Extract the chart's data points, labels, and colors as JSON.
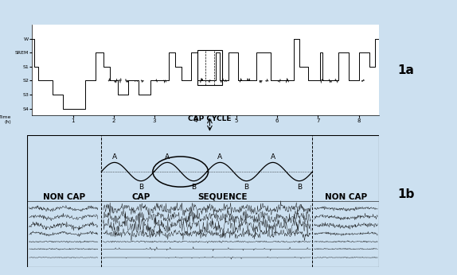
{
  "bg_color": "#cce0f0",
  "border_color": "#4488cc",
  "fig_width": 5.74,
  "fig_height": 3.46,
  "label_1a": "1a",
  "label_1b": "1b",
  "top_panel_xticks": [
    1,
    2,
    3,
    4,
    5,
    6,
    7,
    8
  ],
  "cap_cycle_label": "CAP CYCLE",
  "noncap_left": "NON CAP",
  "cap_label": "CAP",
  "sequence_label": "SEQUENCE",
  "noncap_right": "NON CAP",
  "label_A": "A",
  "label_B": "B"
}
